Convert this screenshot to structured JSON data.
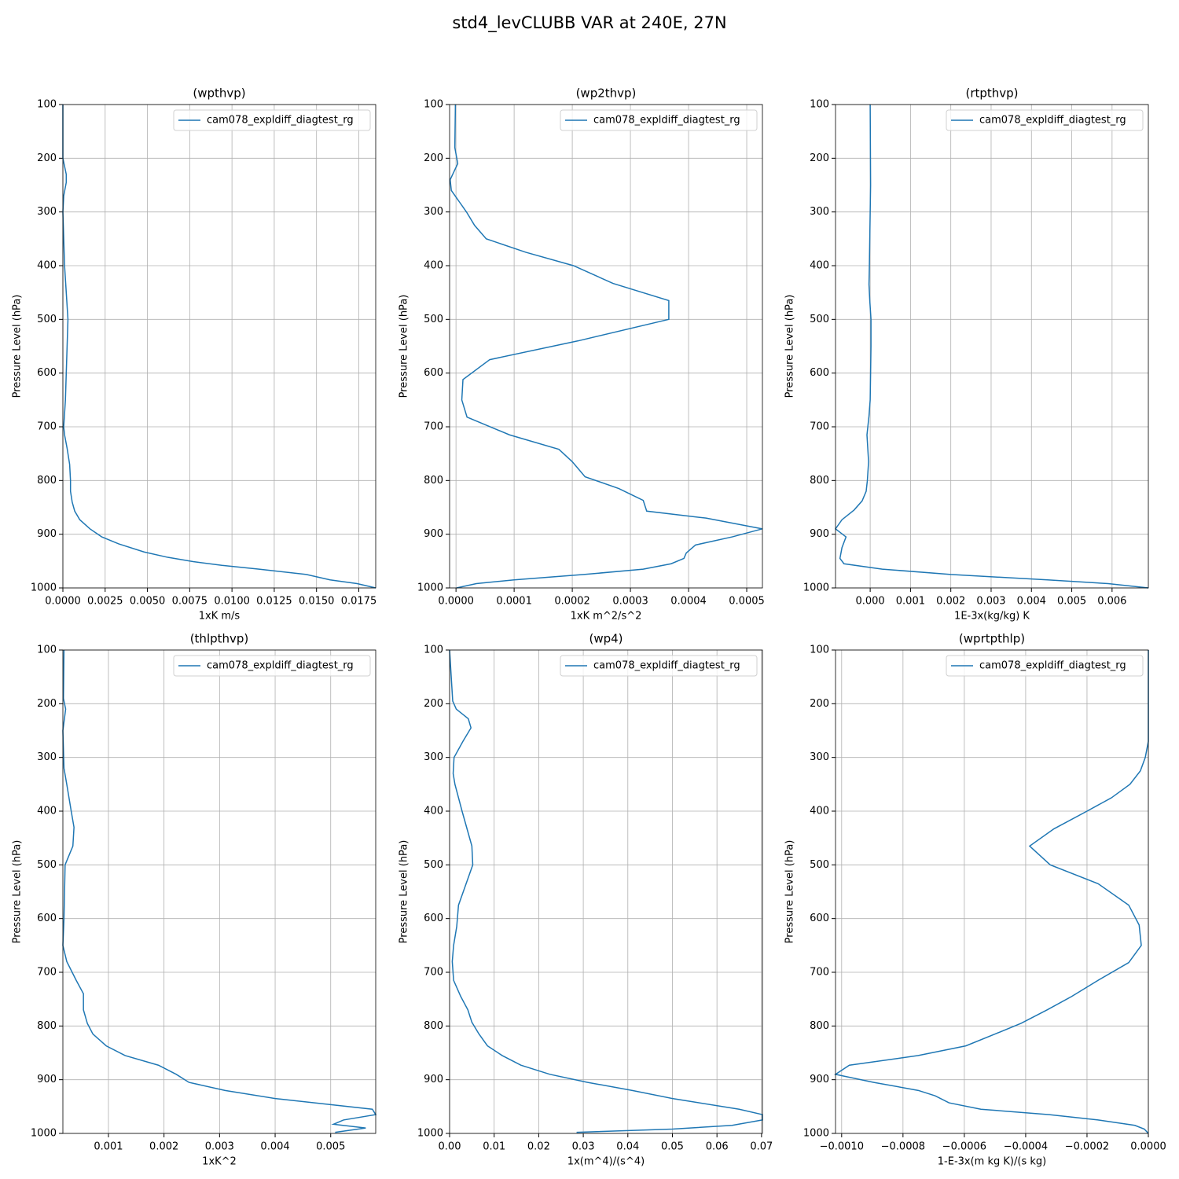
{
  "title": "std4_levCLUBB VAR at 240E, 27N",
  "chart_data": [
    {
      "type": "line",
      "title": "(wpthvp)",
      "xlabel": "1xK m/s",
      "ylabel": "Pressure Level (hPa)",
      "xlim": [
        0,
        0.0185
      ],
      "xticks": [
        {
          "value": 0,
          "label": "0.0000"
        },
        {
          "value": 0.0025,
          "label": "0.0025"
        },
        {
          "value": 0.005,
          "label": "0.0050"
        },
        {
          "value": 0.0075,
          "label": "0.0075"
        },
        {
          "value": 0.01,
          "label": "0.0100"
        },
        {
          "value": 0.0125,
          "label": "0.0125"
        },
        {
          "value": 0.015,
          "label": "0.0150"
        },
        {
          "value": 0.0175,
          "label": "0.0175"
        }
      ],
      "ylim": [
        1000,
        100
      ],
      "yticks": [
        100,
        200,
        300,
        400,
        500,
        600,
        700,
        800,
        900,
        1000
      ],
      "grid": true,
      "legend": "upper right",
      "y": [
        100,
        200,
        230,
        245,
        270,
        300,
        350,
        400,
        450,
        500,
        550,
        600,
        650,
        700,
        715,
        740,
        770,
        800,
        820,
        840,
        857,
        873,
        890,
        905,
        918,
        933,
        943,
        951,
        958,
        965,
        975,
        985,
        992,
        1000
      ],
      "series": [
        {
          "name": "cam078_expldiff_diagtest_rg",
          "color": "#1f77b4",
          "values": [
            0,
            0,
            0.0002,
            0.0002,
            5e-05,
            0,
            5e-05,
            0.0001,
            0.0002,
            0.0003,
            0.00025,
            0.0002,
            0.00015,
            5e-05,
            0.0001,
            0.00025,
            0.0004,
            0.00045,
            0.00045,
            0.00055,
            0.0007,
            0.001,
            0.0016,
            0.0023,
            0.0033,
            0.0048,
            0.0062,
            0.0077,
            0.0094,
            0.0116,
            0.0144,
            0.0158,
            0.0174,
            0.0185
          ]
        }
      ]
    },
    {
      "type": "line",
      "title": "(wp2thvp)",
      "xlabel": "1xK m^2/s^2",
      "ylabel": "Pressure Level (hPa)",
      "xlim": [
        -1.1e-05,
        0.000527
      ],
      "xticks": [
        {
          "value": 0,
          "label": "0.0000"
        },
        {
          "value": 0.0001,
          "label": "0.0001"
        },
        {
          "value": 0.0002,
          "label": "0.0002"
        },
        {
          "value": 0.0003,
          "label": "0.0003"
        },
        {
          "value": 0.0004,
          "label": "0.0004"
        },
        {
          "value": 0.0005,
          "label": "0.0005"
        }
      ],
      "ylim": [
        1000,
        100
      ],
      "yticks": [
        100,
        200,
        300,
        400,
        500,
        600,
        700,
        800,
        900,
        1000
      ],
      "grid": true,
      "legend": "upper right",
      "y": [
        100,
        180,
        210,
        240,
        260,
        280,
        300,
        325,
        350,
        375,
        400,
        433,
        465,
        500,
        540,
        575,
        612,
        650,
        682,
        715,
        742,
        765,
        793,
        815,
        837,
        857,
        870,
        890,
        905,
        920,
        935,
        945,
        955,
        965,
        975,
        985,
        992,
        1000
      ],
      "series": [
        {
          "name": "cam078_expldiff_diagtest_rg",
          "color": "#1f77b4",
          "values": [
            -1e-06,
            -2e-06,
            3e-06,
            -1e-05,
            -8e-06,
            5e-06,
            1.8e-05,
            3.2e-05,
            5.2e-05,
            0.00012,
            0.000202,
            0.00027,
            0.000366,
            0.000366,
            0.00021,
            5.8e-05,
            1.2e-05,
            1e-05,
            1.9e-05,
            9.2e-05,
            0.000177,
            0.0002,
            0.000222,
            0.00028,
            0.000322,
            0.000328,
            0.00043,
            0.000527,
            0.000475,
            0.000412,
            0.000396,
            0.000392,
            0.00037,
            0.000322,
            0.00022,
            0.0001,
            3.5e-05,
            1e-06
          ]
        }
      ]
    },
    {
      "type": "line",
      "title": "(rtpthvp)",
      "xlabel": "1E-3x(kg/kg) K",
      "ylabel": "Pressure Level (hPa)",
      "xlim": [
        -0.00086,
        0.0069
      ],
      "xticks": [
        {
          "value": 0,
          "label": "0.000"
        },
        {
          "value": 0.001,
          "label": "0.001"
        },
        {
          "value": 0.002,
          "label": "0.002"
        },
        {
          "value": 0.003,
          "label": "0.003"
        },
        {
          "value": 0.004,
          "label": "0.004"
        },
        {
          "value": 0.005,
          "label": "0.005"
        },
        {
          "value": 0.006,
          "label": "0.006"
        }
      ],
      "ylim": [
        1000,
        100
      ],
      "yticks": [
        100,
        200,
        300,
        400,
        500,
        600,
        700,
        800,
        900,
        1000
      ],
      "grid": true,
      "legend": "upper right",
      "y": [
        100,
        250,
        400,
        435,
        465,
        500,
        550,
        600,
        650,
        680,
        715,
        765,
        800,
        820,
        838,
        855,
        873,
        890,
        905,
        925,
        945,
        955,
        965,
        975,
        985,
        992,
        1000
      ],
      "series": [
        {
          "name": "cam078_expldiff_diagtest_rg",
          "color": "#1f77b4",
          "values": [
            0,
            1e-05,
            -2e-05,
            -3e-05,
            -1e-05,
            2e-05,
            2e-05,
            1e-05,
            0,
            -3e-05,
            -8e-05,
            -4e-05,
            -7e-05,
            -0.0001,
            -0.0002,
            -0.0004,
            -0.0007,
            -0.00086,
            -0.0006,
            -0.0007,
            -0.00075,
            -0.00065,
            0.0003,
            0.002,
            0.0044,
            0.0059,
            0.0069
          ]
        }
      ]
    },
    {
      "type": "line",
      "title": "(thlpthvp)",
      "xlabel": "1xK^2",
      "ylabel": "Pressure Level (hPa)",
      "xlim": [
        0.00018,
        0.00581
      ],
      "xticks": [
        0.001,
        0.002,
        0.003,
        0.004,
        0.005
      ],
      "ylim": [
        1000,
        100
      ],
      "yticks": [
        100,
        200,
        300,
        400,
        500,
        600,
        700,
        800,
        900,
        1000
      ],
      "grid": true,
      "legend": "upper right",
      "y": [
        100,
        190,
        210,
        250,
        320,
        350,
        400,
        430,
        465,
        500,
        550,
        600,
        650,
        680,
        715,
        740,
        770,
        795,
        815,
        837,
        855,
        873,
        890,
        905,
        920,
        935,
        955,
        965,
        975,
        983,
        990,
        998
      ],
      "series": [
        {
          "name": "cam078_expldiff_diagtest_rg",
          "color": "#1f77b4",
          "values": [
            0.0002,
            0.00019,
            0.00023,
            0.00018,
            0.0002,
            0.00025,
            0.00033,
            0.00038,
            0.00036,
            0.00022,
            0.00021,
            0.0002,
            0.00018,
            0.00025,
            0.00042,
            0.00055,
            0.00055,
            0.00062,
            0.00072,
            0.00096,
            0.0013,
            0.0019,
            0.00222,
            0.00245,
            0.0031,
            0.004,
            0.00575,
            0.00581,
            0.00523,
            0.00505,
            0.00563,
            0.00508
          ]
        }
      ]
    },
    {
      "type": "line",
      "title": "(wp4)",
      "xlabel": "1x(m^4)/(s^4)",
      "ylabel": "Pressure Level (hPa)",
      "xlim": [
        0,
        0.0702
      ],
      "xticks": [
        {
          "value": 0,
          "label": "0.00"
        },
        {
          "value": 0.01,
          "label": "0.01"
        },
        {
          "value": 0.02,
          "label": "0.02"
        },
        {
          "value": 0.03,
          "label": "0.03"
        },
        {
          "value": 0.04,
          "label": "0.04"
        },
        {
          "value": 0.05,
          "label": "0.05"
        },
        {
          "value": 0.06,
          "label": "0.06"
        },
        {
          "value": 0.07,
          "label": "0.07"
        }
      ],
      "ylim": [
        1000,
        100
      ],
      "yticks": [
        100,
        200,
        300,
        400,
        500,
        600,
        700,
        800,
        900,
        1000
      ],
      "grid": true,
      "legend": "upper right",
      "y": [
        100,
        195,
        210,
        228,
        245,
        270,
        300,
        330,
        350,
        400,
        465,
        500,
        540,
        575,
        615,
        650,
        680,
        715,
        745,
        770,
        793,
        815,
        837,
        855,
        873,
        890,
        905,
        920,
        935,
        955,
        965,
        975,
        985,
        992,
        998
      ],
      "series": [
        {
          "name": "cam078_expldiff_diagtest_rg",
          "color": "#1f77b4",
          "values": [
            0,
            0.0007,
            0.0015,
            0.0042,
            0.0048,
            0.003,
            0.001,
            0.0008,
            0.0012,
            0.0028,
            0.005,
            0.0052,
            0.0035,
            0.002,
            0.0016,
            0.0009,
            0.0006,
            0.0009,
            0.0025,
            0.0041,
            0.005,
            0.0066,
            0.0085,
            0.0118,
            0.016,
            0.0225,
            0.031,
            0.041,
            0.05,
            0.065,
            0.0702,
            0.0702,
            0.0634,
            0.05,
            0.0285
          ]
        }
      ]
    },
    {
      "type": "line",
      "title": "(wprtpthlp)",
      "xlabel": "1-E-3x(m kg K)/(s kg)",
      "ylabel": "Pressure Level (hPa)",
      "xlim": [
        -0.00102,
        0
      ],
      "xticks": [
        {
          "value": -0.001,
          "label": "−0.0010"
        },
        {
          "value": -0.0008,
          "label": "−0.0008"
        },
        {
          "value": -0.0006,
          "label": "−0.0006"
        },
        {
          "value": -0.0004,
          "label": "−0.0004"
        },
        {
          "value": -0.0002,
          "label": "−0.0002"
        },
        {
          "value": 0,
          "label": "0.0000"
        }
      ],
      "ylim": [
        1000,
        100
      ],
      "yticks": [
        100,
        200,
        300,
        400,
        500,
        600,
        700,
        800,
        900,
        1000
      ],
      "grid": true,
      "legend": "upper right",
      "y": [
        100,
        270,
        300,
        325,
        350,
        375,
        400,
        433,
        465,
        500,
        535,
        575,
        612,
        650,
        682,
        715,
        745,
        770,
        795,
        815,
        837,
        855,
        873,
        890,
        905,
        920,
        930,
        943,
        955,
        965,
        975,
        985,
        992,
        1000
      ],
      "series": [
        {
          "name": "cam078_expldiff_diagtest_rg",
          "color": "#1f77b4",
          "values": [
            0,
            0,
            -1e-05,
            -2.6e-05,
            -6e-05,
            -0.00012,
            -0.0002,
            -0.000308,
            -0.000387,
            -0.00032,
            -0.000164,
            -6.4e-05,
            -3e-05,
            -2.3e-05,
            -6.4e-05,
            -0.000164,
            -0.00025,
            -0.00033,
            -0.000415,
            -0.0005,
            -0.000595,
            -0.00075,
            -0.000975,
            -0.00102,
            -0.000895,
            -0.00075,
            -0.000695,
            -0.00065,
            -0.000546,
            -0.000323,
            -0.000164,
            -4.4e-05,
            -1.3e-05,
            0
          ]
        }
      ]
    }
  ]
}
